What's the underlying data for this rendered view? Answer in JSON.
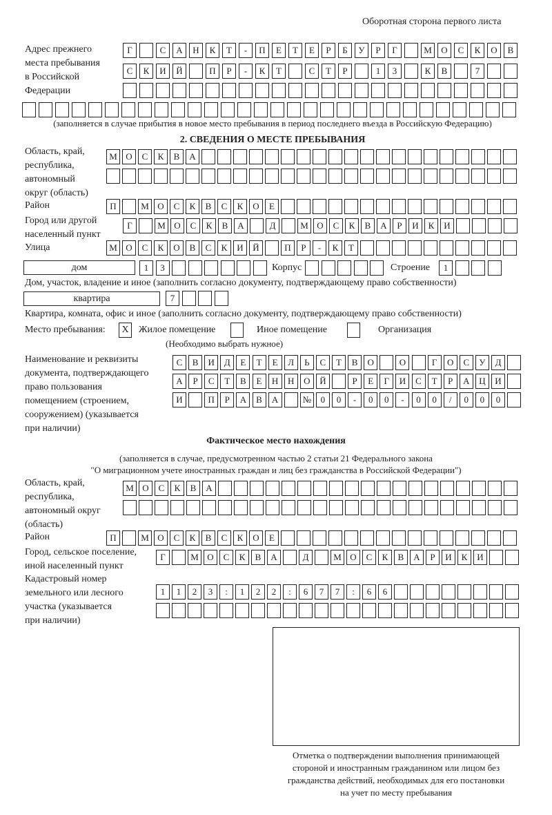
{
  "header": {
    "page_side": "Оборотная сторона первого листа"
  },
  "previous_address": {
    "label": [
      "Адрес прежнего",
      "места пребывания",
      "в Российской",
      "Федерации"
    ],
    "rows": [
      "Г САНКТ-ПЕТЕРБУРГ МОСКОВ",
      "СКИЙ ПР-КТ СТР 13 КВ 7",
      "",
      ""
    ],
    "note": "(заполняется в случае прибытия в новое место пребывания в период последнего въезда в Российскую Федерацию)"
  },
  "section2": {
    "title": "2. СВЕДЕНИЯ О МЕСТЕ ПРЕБЫВАНИЯ",
    "region_label": [
      "Область, край,",
      "республика,",
      "автономный",
      "округ (область)"
    ],
    "region_rows": [
      "МОСКВА",
      ""
    ],
    "district_label": "Район",
    "district": "П МОСКВСКОЕ",
    "city_label": [
      "Город или другой",
      "населенный пункт"
    ],
    "city": "Г МОСКВА Д МОСКВАРИКИ",
    "street_label": "Улица",
    "street": "МОСКОВСКИЙ ПР-КТ",
    "house_type": "дом",
    "house_number": "13",
    "building_label": "Корпус",
    "building": "",
    "structure_label": "Строение",
    "structure": "1",
    "house_caption": "Дом, участок, владение и иное (заполнить согласно документу, подтверждающему право собственности)",
    "apartment_type": "квартира",
    "apartment_number": "7",
    "apartment_caption": "Квартира, комната, офис и иное (заполнить согласно документу, подтверждающему право собственности)",
    "place_label": "Место пребывания:",
    "place_options": [
      {
        "label": "Жилое помещение",
        "mark": "X",
        "checked": true
      },
      {
        "label": "Иное помещение",
        "mark": "",
        "checked": false
      },
      {
        "label": "Организация",
        "mark": "",
        "checked": false
      }
    ],
    "place_hint": "(Необходимо выбрать нужное)",
    "document_label": [
      "Наименование и реквизиты",
      "документа, подтверждающего",
      "право пользования",
      "помещением (строением,",
      "сооружением) (указывается",
      "при наличии)"
    ],
    "document_rows": [
      "СВИДЕТЕЛЬСТВО О ГОСУД",
      "АРСТВЕННОЙ РЕГИСТРАЦИ",
      "И ПРАВА №00-00-00/000"
    ]
  },
  "actual_location": {
    "title": "Фактическое место нахождения",
    "note": [
      "(заполняется в случае, предусмотренном частью 2 статьи 21 Федерального закона",
      "\"О миграционном учете иностранных граждан и лиц без гражданства в Российской Федерации\")"
    ],
    "region_label": [
      "Область, край,",
      "республика,",
      "автономный округ",
      "(область)"
    ],
    "region_rows": [
      "МОСКВА",
      ""
    ],
    "district_label": "Район",
    "district": "П МОСКВСКОЕ",
    "city_label": [
      "Город, сельское поселение,",
      "иной населенный пункт"
    ],
    "city": "Г МОСКВА Д МОСКВАРИКИ",
    "cadastre_label": [
      "Кадастровый номер",
      "земельного или лесного",
      "участка (указывается",
      "при наличии)"
    ],
    "cadastre_rows": [
      "1123:122:677:66",
      ""
    ]
  },
  "confirmation": {
    "caption": [
      "Отметка о подтверждении выполнения принимающей",
      "стороной и иностранным гражданином или лицом без",
      "гражданства действий, необходимых для его постановки",
      "на учет по месту пребывания"
    ]
  }
}
